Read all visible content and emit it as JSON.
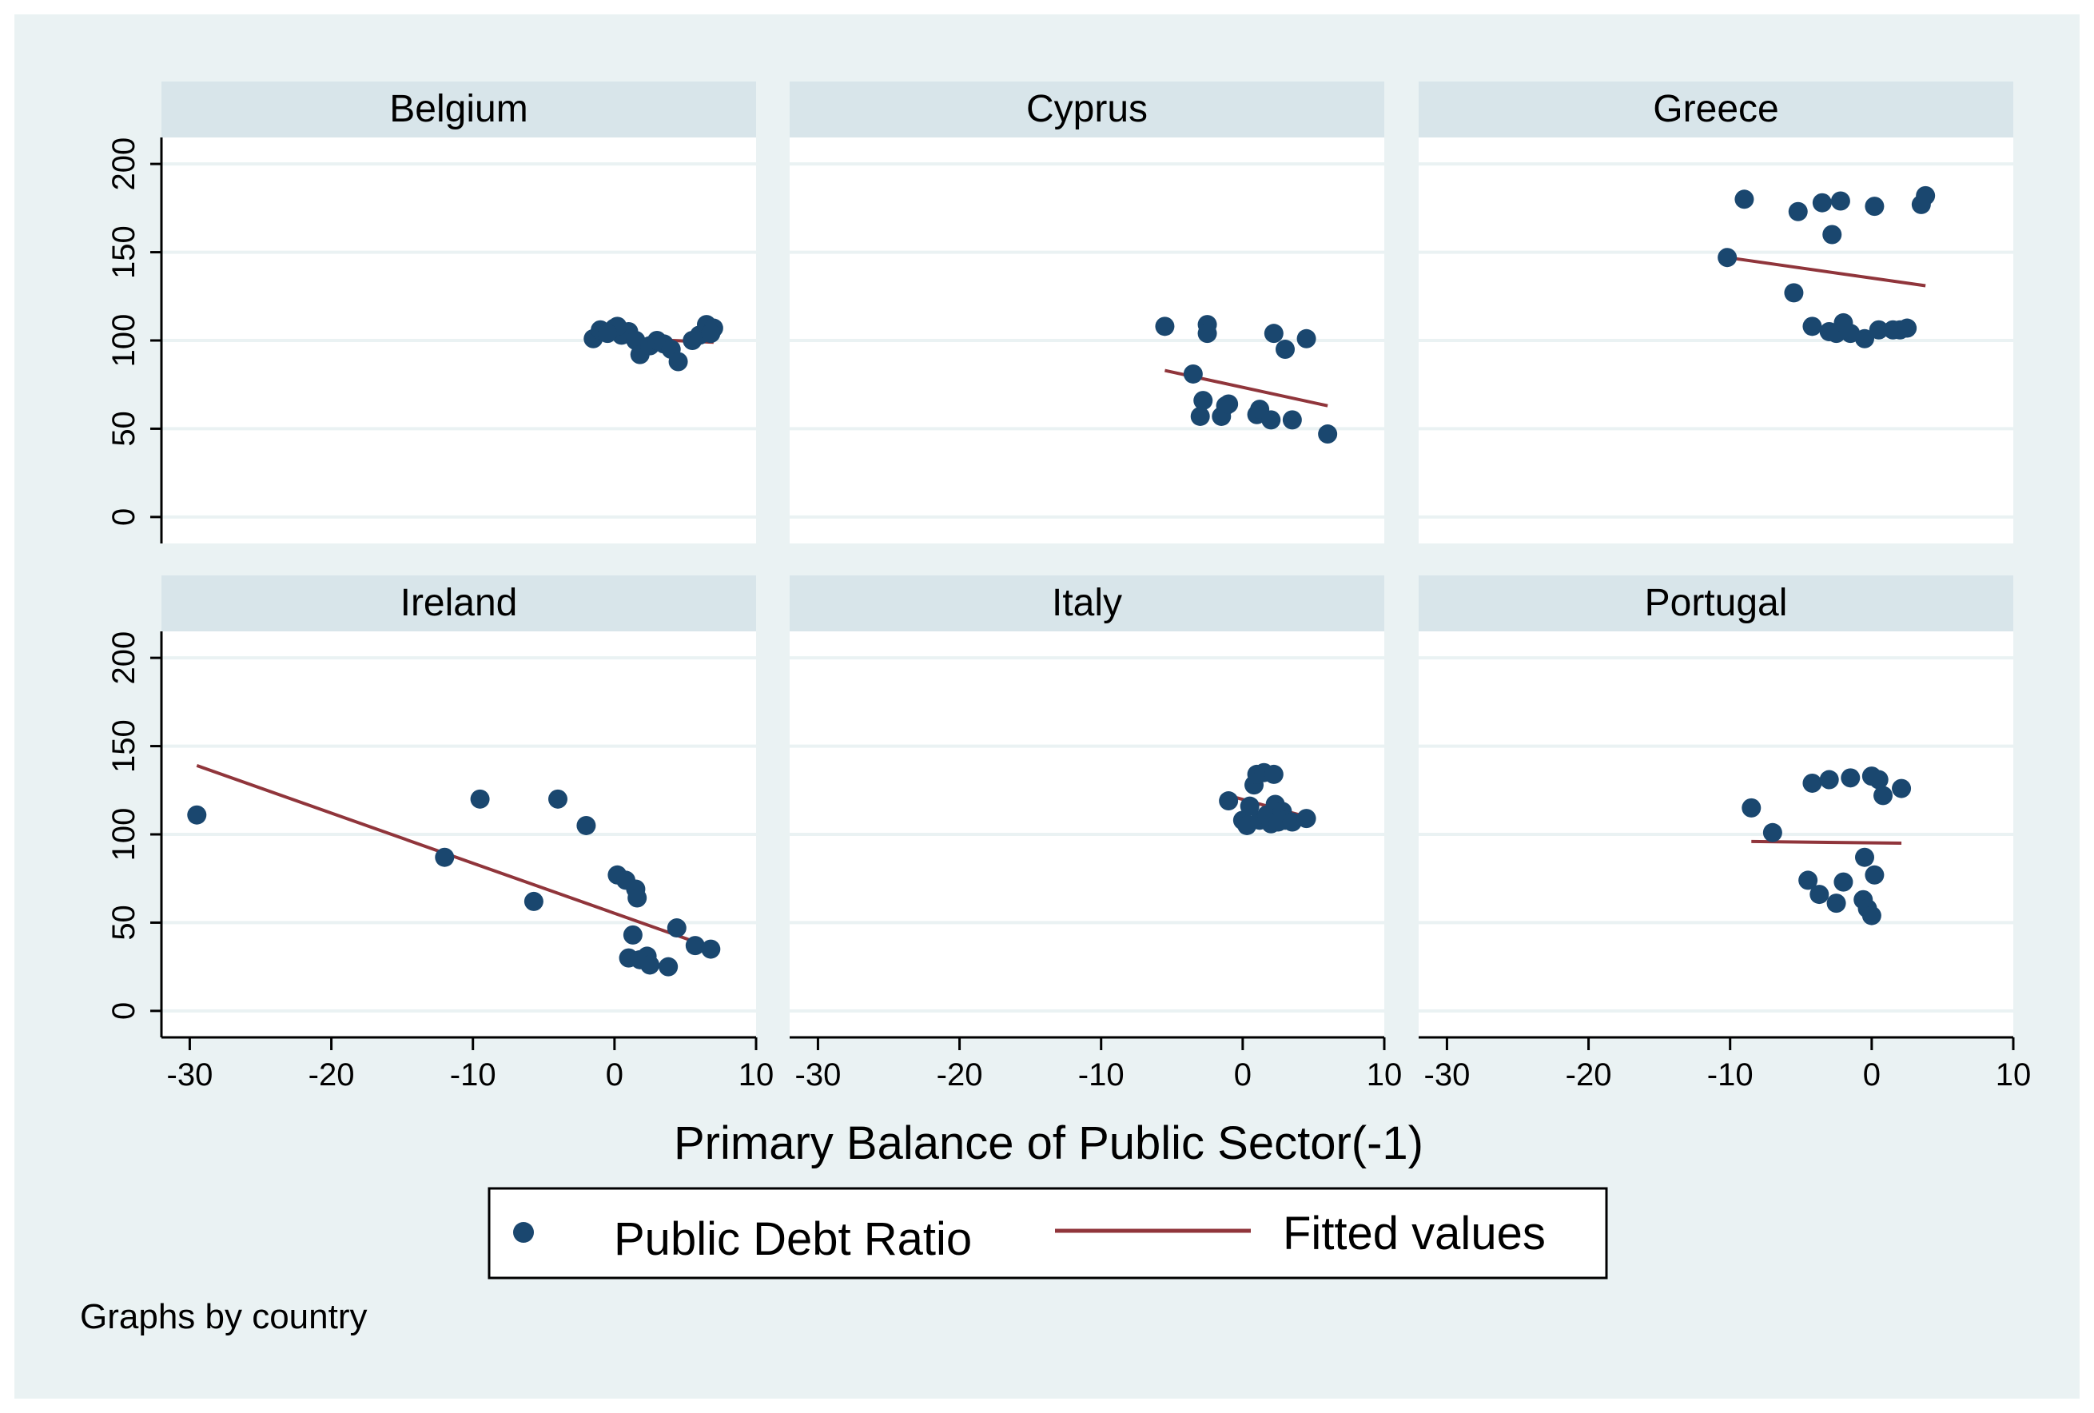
{
  "chart_data": {
    "type": "scatter",
    "xlabel": "Primary Balance of Public Sector(-1)",
    "ylabel": "",
    "xlim": [
      -32,
      10
    ],
    "ylim": [
      -15,
      215
    ],
    "x_ticks": [
      "-30",
      "-20",
      "-10",
      "0",
      "10"
    ],
    "y_ticks": [
      "0",
      "50",
      "100",
      "150",
      "200"
    ],
    "legend": {
      "placement": "bottom",
      "point_label": "Public Debt Ratio",
      "line_label": "Fitted values"
    },
    "note": "Graphs by country",
    "colors": {
      "outer_bg": "#eaf2f3",
      "panel_bg": "#ffffff",
      "strip_bg": "#d8e5ea",
      "grid": "#eaf2f3",
      "point": "#1a476f",
      "line": "#90353b",
      "axis": "#000000"
    },
    "panels": [
      {
        "title": "Belgium",
        "points": [
          [
            -1.5,
            101
          ],
          [
            -1,
            106
          ],
          [
            0,
            107
          ],
          [
            0.5,
            103
          ],
          [
            1,
            105
          ],
          [
            1.5,
            100
          ],
          [
            1.8,
            92
          ],
          [
            2.5,
            97
          ],
          [
            3,
            100
          ],
          [
            3.5,
            98
          ],
          [
            4,
            95
          ],
          [
            4.5,
            88
          ],
          [
            5.5,
            100
          ],
          [
            6,
            103
          ],
          [
            6.5,
            109
          ],
          [
            7,
            107
          ],
          [
            6.8,
            104
          ],
          [
            0.2,
            108
          ],
          [
            -0.5,
            104
          ]
        ],
        "fit": [
          [
            -1.5,
            102
          ],
          [
            7,
            99
          ]
        ]
      },
      {
        "title": "Cyprus",
        "points": [
          [
            -5.5,
            108
          ],
          [
            -2.5,
            109
          ],
          [
            -2.5,
            104
          ],
          [
            -3.5,
            81
          ],
          [
            -2.8,
            66
          ],
          [
            -3,
            57
          ],
          [
            -1.2,
            63
          ],
          [
            -1.5,
            57
          ],
          [
            -1,
            64
          ],
          [
            1,
            58
          ],
          [
            1.2,
            61
          ],
          [
            2,
            55
          ],
          [
            2.2,
            104
          ],
          [
            3,
            95
          ],
          [
            3.5,
            55
          ],
          [
            4.5,
            101
          ],
          [
            6,
            47
          ]
        ],
        "fit": [
          [
            -5.5,
            83
          ],
          [
            6,
            63
          ]
        ]
      },
      {
        "title": "Greece",
        "points": [
          [
            -10.2,
            147
          ],
          [
            -9,
            180
          ],
          [
            -5.5,
            127
          ],
          [
            -5.2,
            173
          ],
          [
            -4.2,
            108
          ],
          [
            -3.5,
            178
          ],
          [
            -3,
            105
          ],
          [
            -2.8,
            160
          ],
          [
            -2.5,
            104
          ],
          [
            -2,
            110
          ],
          [
            -2.2,
            179
          ],
          [
            -1.5,
            104
          ],
          [
            -0.5,
            101
          ],
          [
            0.2,
            176
          ],
          [
            0.5,
            106
          ],
          [
            1.5,
            106
          ],
          [
            2,
            106
          ],
          [
            2.5,
            107
          ],
          [
            3.5,
            177
          ],
          [
            3.8,
            182
          ]
        ],
        "fit": [
          [
            -10.2,
            147
          ],
          [
            3.8,
            131
          ]
        ]
      },
      {
        "title": "Ireland",
        "points": [
          [
            -29.5,
            111
          ],
          [
            -12,
            87
          ],
          [
            -9.5,
            120
          ],
          [
            -5.7,
            62
          ],
          [
            -4,
            120
          ],
          [
            -2,
            105
          ],
          [
            0.2,
            77
          ],
          [
            0.8,
            74
          ],
          [
            1,
            30
          ],
          [
            1.3,
            43
          ],
          [
            1.5,
            69
          ],
          [
            1.6,
            64
          ],
          [
            1.8,
            29
          ],
          [
            2.3,
            31
          ],
          [
            2.5,
            26
          ],
          [
            3.8,
            25
          ],
          [
            4.4,
            47
          ],
          [
            5.7,
            37
          ],
          [
            6.8,
            35
          ]
        ],
        "fit": [
          [
            -29.5,
            139
          ],
          [
            6.8,
            36
          ]
        ]
      },
      {
        "title": "Italy",
        "points": [
          [
            -1,
            119
          ],
          [
            0,
            108
          ],
          [
            0.3,
            105
          ],
          [
            0.5,
            116
          ],
          [
            0.8,
            128
          ],
          [
            1,
            134
          ],
          [
            1.2,
            108
          ],
          [
            1.5,
            135
          ],
          [
            1.7,
            111
          ],
          [
            2,
            106
          ],
          [
            2.2,
            134
          ],
          [
            2.3,
            117
          ],
          [
            2.5,
            107
          ],
          [
            2.8,
            113
          ],
          [
            3,
            108
          ],
          [
            3.5,
            107
          ],
          [
            4.5,
            109
          ]
        ],
        "fit": [
          [
            -1,
            122
          ],
          [
            4.5,
            110
          ]
        ]
      },
      {
        "title": "Portugal",
        "points": [
          [
            -8.5,
            115
          ],
          [
            -7,
            101
          ],
          [
            -4.5,
            74
          ],
          [
            -4.2,
            129
          ],
          [
            -3.7,
            66
          ],
          [
            -3,
            131
          ],
          [
            -2.5,
            61
          ],
          [
            -2,
            73
          ],
          [
            -1.5,
            132
          ],
          [
            -0.5,
            87
          ],
          [
            -0.6,
            63
          ],
          [
            -0.3,
            58
          ],
          [
            0,
            133
          ],
          [
            0,
            54
          ],
          [
            0.2,
            77
          ],
          [
            0.5,
            131
          ],
          [
            0.8,
            122
          ],
          [
            2.1,
            126
          ]
        ],
        "fit": [
          [
            -8.5,
            96
          ],
          [
            2.1,
            95
          ]
        ]
      }
    ]
  }
}
